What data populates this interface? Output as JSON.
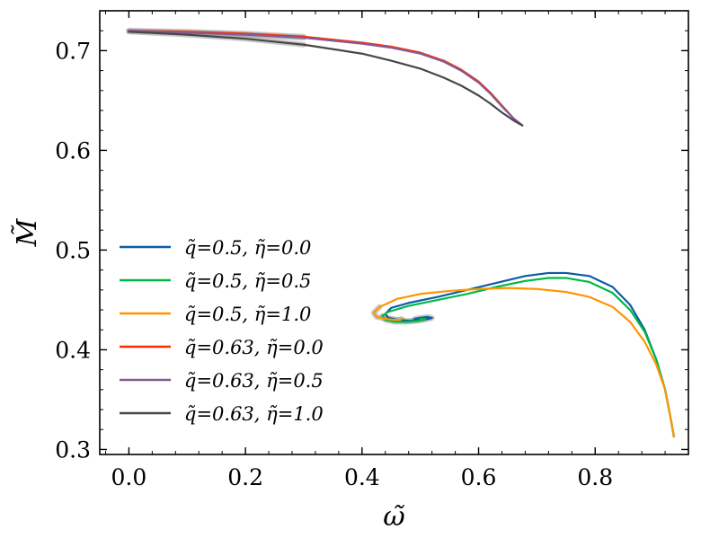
{
  "chart_data": {
    "type": "line",
    "title": "",
    "xlabel": "ω̃",
    "ylabel": "M̃",
    "xlim": [
      -0.05,
      0.96
    ],
    "ylim": [
      0.295,
      0.74
    ],
    "xticks": [
      0.0,
      0.2,
      0.4,
      0.6,
      0.8
    ],
    "xtick_labels": [
      "0.0",
      "0.2",
      "0.4",
      "0.6",
      "0.8"
    ],
    "yticks": [
      0.3,
      0.4,
      0.5,
      0.6,
      0.7
    ],
    "ytick_labels": [
      "0.3",
      "0.4",
      "0.5",
      "0.6",
      "0.7"
    ],
    "grid": false,
    "legend_position": "center-left",
    "series": [
      {
        "name": "q̃=0.5, η̃=0.0",
        "color": "#0C5DA5",
        "x": [
          0.935,
          0.93,
          0.92,
          0.905,
          0.885,
          0.86,
          0.83,
          0.79,
          0.75,
          0.72,
          0.68,
          0.63,
          0.58,
          0.53,
          0.48,
          0.45,
          0.44,
          0.445,
          0.46,
          0.48,
          0.5,
          0.515,
          0.52,
          0.512,
          0.5,
          0.49
        ],
        "y": [
          0.313,
          0.33,
          0.36,
          0.39,
          0.42,
          0.445,
          0.463,
          0.474,
          0.477,
          0.477,
          0.474,
          0.467,
          0.46,
          0.453,
          0.447,
          0.442,
          0.436,
          0.432,
          0.43,
          0.429,
          0.43,
          0.431,
          0.432,
          0.433,
          0.432,
          0.431
        ]
      },
      {
        "name": "q̃=0.5, η̃=0.5",
        "color": "#00B945",
        "x": [
          0.935,
          0.93,
          0.92,
          0.905,
          0.885,
          0.86,
          0.83,
          0.79,
          0.75,
          0.72,
          0.68,
          0.63,
          0.58,
          0.53,
          0.48,
          0.445,
          0.435,
          0.44,
          0.455,
          0.475,
          0.495,
          0.505,
          0.508,
          0.5
        ],
        "y": [
          0.313,
          0.33,
          0.36,
          0.39,
          0.418,
          0.44,
          0.457,
          0.468,
          0.472,
          0.472,
          0.469,
          0.463,
          0.456,
          0.45,
          0.444,
          0.438,
          0.434,
          0.43,
          0.428,
          0.428,
          0.429,
          0.43,
          0.431,
          0.431
        ]
      },
      {
        "name": "q̃=0.5, η̃=1.0",
        "color": "#FF9500",
        "x": [
          0.935,
          0.93,
          0.92,
          0.905,
          0.885,
          0.86,
          0.83,
          0.79,
          0.75,
          0.7,
          0.65,
          0.6,
          0.55,
          0.5,
          0.46,
          0.43,
          0.42,
          0.425,
          0.44,
          0.455,
          0.465,
          0.468
        ],
        "y": [
          0.313,
          0.33,
          0.36,
          0.385,
          0.408,
          0.428,
          0.443,
          0.453,
          0.458,
          0.461,
          0.462,
          0.461,
          0.459,
          0.456,
          0.451,
          0.443,
          0.437,
          0.433,
          0.431,
          0.43,
          0.43,
          0.431
        ]
      },
      {
        "name": "q̃=0.63, η̃=0.0",
        "color": "#FF2C00",
        "x": [
          0.675,
          0.66,
          0.64,
          0.62,
          0.6,
          0.57,
          0.54,
          0.5,
          0.45,
          0.4,
          0.3,
          0.2,
          0.1,
          0.0
        ],
        "y": [
          0.625,
          0.632,
          0.645,
          0.658,
          0.669,
          0.681,
          0.69,
          0.698,
          0.704,
          0.708,
          0.714,
          0.717,
          0.719,
          0.72
        ]
      },
      {
        "name": "q̃=0.63, η̃=0.5",
        "color": "#845B97",
        "x": [
          0.675,
          0.66,
          0.64,
          0.62,
          0.6,
          0.57,
          0.54,
          0.5,
          0.45,
          0.4,
          0.3,
          0.2,
          0.1,
          0.0
        ],
        "y": [
          0.625,
          0.632,
          0.644,
          0.657,
          0.668,
          0.68,
          0.689,
          0.697,
          0.703,
          0.707,
          0.713,
          0.716,
          0.718,
          0.72
        ]
      },
      {
        "name": "q̃=0.63, η̃=1.0",
        "color": "#474747",
        "x": [
          0.675,
          0.66,
          0.64,
          0.62,
          0.6,
          0.57,
          0.54,
          0.5,
          0.45,
          0.4,
          0.3,
          0.2,
          0.1,
          0.0
        ],
        "y": [
          0.625,
          0.63,
          0.638,
          0.647,
          0.655,
          0.665,
          0.673,
          0.682,
          0.69,
          0.697,
          0.706,
          0.712,
          0.716,
          0.719
        ]
      }
    ]
  }
}
